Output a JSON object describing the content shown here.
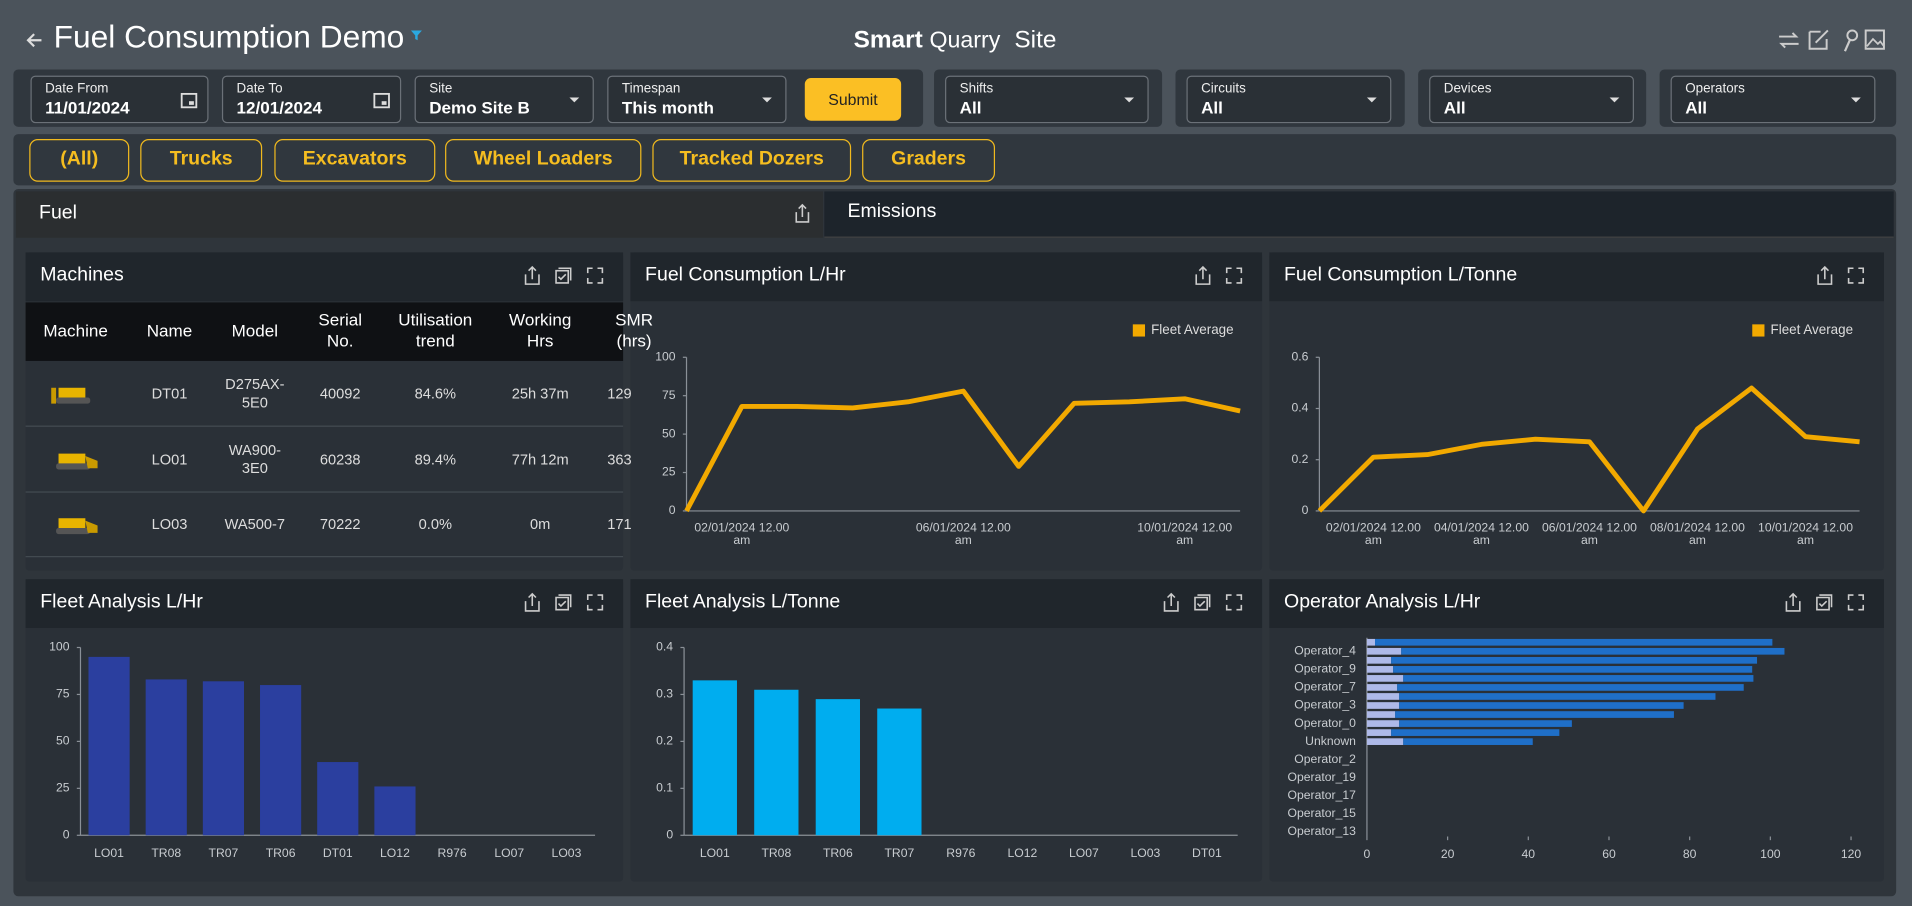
{
  "header": {
    "title": "Fuel Consumption Demo",
    "brand": "Smart",
    "product": "Quarry",
    "site": "Site"
  },
  "filters": [
    {
      "label": "Date From",
      "value": "11/01/2024"
    },
    {
      "label": "Date To",
      "value": "12/01/2024"
    },
    {
      "label": "Site",
      "value": "Demo Site B"
    },
    {
      "label": "Timespan",
      "value": "This month"
    },
    {
      "label": "Shifts",
      "value": "All"
    },
    {
      "label": "Circuits",
      "value": "All"
    },
    {
      "label": "Devices",
      "value": "All"
    },
    {
      "label": "Operators",
      "value": "All"
    }
  ],
  "submit": "Submit",
  "machine_types": [
    "(All)",
    "Trucks",
    "Excavators",
    "Wheel Loaders",
    "Tracked Dozers",
    "Graders"
  ],
  "tabs": [
    "Fuel",
    "Emissions"
  ],
  "table": {
    "title": "Machines",
    "headers": [
      "Machine",
      "Name",
      "Model",
      "Serial No.",
      "Utilisation trend",
      "Working Hrs",
      "SMR (hrs)"
    ],
    "rows": [
      [
        "DT01",
        "D275AX-5E0",
        "40092",
        "84.6%",
        "25h 37m",
        "129"
      ],
      [
        "LO01",
        "WA900-3E0",
        "60238",
        "89.4%",
        "77h 12m",
        "363"
      ],
      [
        "LO03",
        "WA500-7",
        "70222",
        "0.0%",
        "0m",
        "171"
      ]
    ]
  },
  "chart_data": [
    {
      "type": "line",
      "title": "Fuel Consumption L/Hr",
      "categories": [
        null,
        "02/01/2024 12.00 am",
        null,
        null,
        null,
        "06/01/2024 12.00 am",
        null,
        null,
        null,
        "10/01/2024 12.00 am",
        null
      ],
      "series": [
        {
          "name": "Fleet Average",
          "color": "#f2a900",
          "values": [
            0,
            68,
            68,
            67,
            71,
            78,
            29,
            70,
            71,
            73,
            65
          ]
        }
      ],
      "ylim": [
        0,
        100
      ],
      "yticks": [
        0,
        25,
        50,
        75,
        100
      ],
      "legend": "top-right"
    },
    {
      "type": "line",
      "title": "Fuel Consumption L/Tonne",
      "categories": [
        null,
        "02/01/2024 12.00 am",
        null,
        "04/01/2024 12.00 am",
        null,
        "06/01/2024 12.00 am",
        null,
        "08/01/2024 12.00 am",
        null,
        "10/01/2024 12.00 am",
        null
      ],
      "series": [
        {
          "name": "Fleet Average",
          "color": "#f2a900",
          "values": [
            0,
            0.21,
            0.22,
            0.26,
            0.28,
            0.27,
            0,
            0.32,
            0.48,
            0.29,
            0.27
          ]
        }
      ],
      "ylim": [
        0,
        0.6
      ],
      "yticks": [
        0,
        0.2,
        0.4,
        0.6
      ],
      "legend": "top-right"
    },
    {
      "type": "bar",
      "title": "Fleet Analysis L/Hr",
      "categories": [
        "LO01",
        "TR08",
        "TR07",
        "TR06",
        "DT01",
        "LO12",
        "R976",
        "LO07",
        "LO03"
      ],
      "values": [
        95,
        83,
        82,
        80,
        39,
        26,
        0,
        0,
        0
      ],
      "color": "#2b3f9f",
      "ylim": [
        0,
        100
      ],
      "yticks": [
        0,
        25,
        50,
        75,
        100
      ]
    },
    {
      "type": "bar",
      "title": "Fleet Analysis L/Tonne",
      "categories": [
        "LO01",
        "TR08",
        "TR06",
        "TR07",
        "R976",
        "LO12",
        "LO07",
        "LO03",
        "DT01"
      ],
      "values": [
        0.33,
        0.31,
        0.29,
        0.27,
        0,
        0,
        0,
        0,
        0
      ],
      "color": "#00adef",
      "ylim": [
        0,
        0.4
      ],
      "yticks": [
        0,
        0.1,
        0.2,
        0.3,
        0.4
      ]
    },
    {
      "type": "bar",
      "orientation": "horizontal",
      "stacked": true,
      "title": "Operator Analysis L/Hr",
      "categories": [
        null,
        "Operator_4",
        null,
        "Operator_9",
        null,
        "Operator_7",
        null,
        "Operator_3",
        null,
        "Operator_0",
        null,
        "Unknown",
        null,
        "Operator_2",
        null,
        "Operator_19",
        null,
        "Operator_17",
        null,
        "Operator_15",
        null,
        "Operator_13"
      ],
      "series": [
        {
          "color": "#aeb9e8",
          "values": [
            2,
            8.5,
            6,
            6.5,
            9,
            7.5,
            8,
            8,
            7,
            8,
            6,
            9,
            null,
            null,
            null,
            null,
            null,
            null,
            null,
            null,
            null,
            null
          ]
        },
        {
          "color": "#1f6fc8",
          "values": [
            98.5,
            95,
            90.7,
            89,
            86.8,
            85.9,
            78.4,
            70.5,
            69.1,
            42.8,
            41.7,
            32.1,
            null,
            null,
            null,
            null,
            null,
            null,
            null,
            null,
            null,
            null
          ]
        }
      ],
      "xlim": [
        0,
        120
      ],
      "xticks": [
        0,
        20,
        40,
        60,
        80,
        100,
        120
      ]
    }
  ]
}
